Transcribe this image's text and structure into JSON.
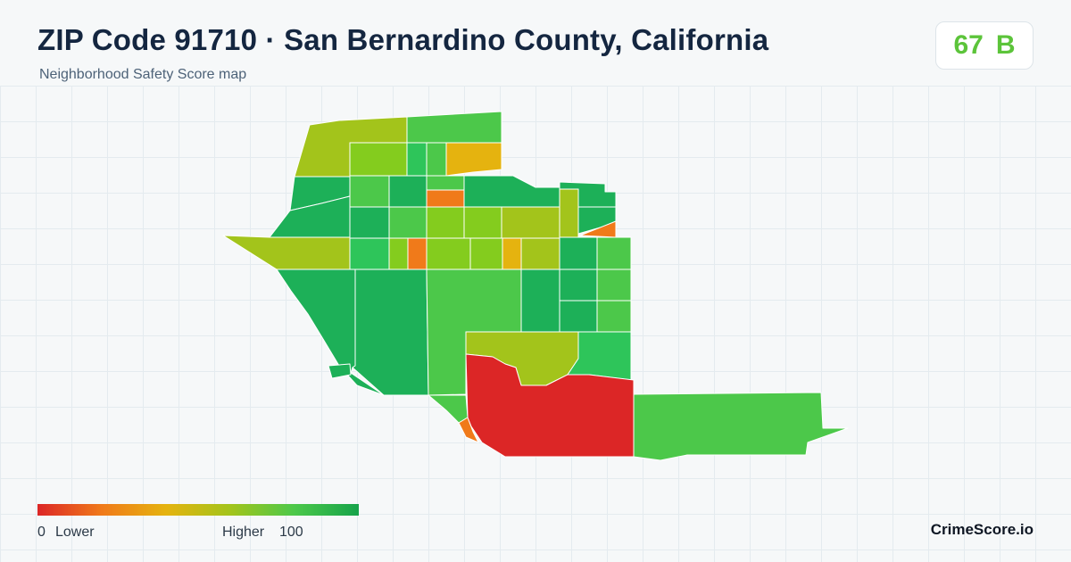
{
  "header": {
    "title": "ZIP Code 91710 · San Bernardino County, California",
    "subtitle": "Neighborhood Safety Score map"
  },
  "score_badge": {
    "score": "67",
    "grade": "B",
    "color": "#5cc43a"
  },
  "legend": {
    "low_value": "0",
    "low_label": "Lower",
    "high_label": "Higher",
    "high_value": "100",
    "gradient": [
      "#dc2626",
      "#f07a1a",
      "#e5b30f",
      "#a3c41b",
      "#4cc84a",
      "#16a34a"
    ]
  },
  "brand": "CrimeScore.io",
  "palette": {
    "dark_green": "#1db058",
    "green": "#4cc84a",
    "bright_green": "#2ec55a",
    "lime": "#84cc1e",
    "yellow_green": "#a3c41b",
    "gold": "#e5b30f",
    "orange": "#f07a1a",
    "red": "#dc2626"
  }
}
